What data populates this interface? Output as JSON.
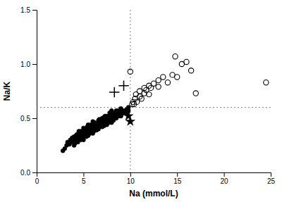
{
  "chart_data": {
    "type": "scatter",
    "xlabel": "Na (mmol/L)",
    "ylabel": "Na/K",
    "xlim": [
      0,
      25
    ],
    "ylim": [
      0.0,
      1.5
    ],
    "xticks": [
      0,
      5,
      10,
      15,
      20,
      25
    ],
    "yticks": [
      {
        "value": 0.0,
        "label": "0.0"
      },
      0.5,
      {
        "value": 1.0,
        "label": "1.0"
      },
      {
        "value": 1.5,
        "label": "1.5"
      }
    ],
    "grid": false,
    "vline_x": 10,
    "hline_y": 0.6,
    "background_color": "#ffffff",
    "series": [
      {
        "marker": "circle",
        "color": "#000000",
        "x": [
          2.8,
          3.0,
          3.2,
          3.3,
          3.5,
          3.6,
          3.7,
          3.8,
          4.0,
          4.0,
          4.0,
          4.1,
          4.1,
          4.2,
          4.2,
          4.3,
          4.3,
          4.4,
          4.4,
          4.5,
          4.5,
          4.5,
          4.6,
          4.6,
          4.7,
          4.7,
          4.7,
          4.8,
          4.8,
          4.9,
          5.0,
          5.0,
          5.0,
          5.0,
          5.1,
          5.1,
          5.2,
          5.2,
          5.3,
          5.3,
          5.3,
          5.4,
          5.4,
          5.4,
          5.5,
          5.5,
          5.5,
          5.5,
          5.6,
          5.6,
          5.7,
          5.7,
          5.7,
          5.8,
          5.8,
          5.8,
          5.9,
          5.9,
          6.0,
          6.0,
          6.0,
          6.0,
          6.1,
          6.1,
          6.2,
          6.2,
          6.2,
          6.3,
          6.3,
          6.4,
          6.4,
          6.5,
          6.5,
          6.6,
          6.6,
          6.6,
          6.7,
          6.7,
          6.7,
          6.8,
          6.8,
          6.9,
          6.9,
          7.0,
          7.0,
          7.0,
          7.1,
          7.1,
          7.2,
          7.2,
          7.2,
          7.3,
          7.3,
          7.3,
          7.4,
          7.5,
          7.5,
          7.5,
          7.6,
          7.6,
          7.7,
          7.7,
          7.8,
          7.8,
          7.8,
          7.9,
          7.9,
          8.0,
          8.0,
          8.0,
          8.0,
          8.1,
          8.1,
          8.2,
          8.2,
          8.3,
          8.3,
          8.4,
          8.4,
          8.5,
          8.5,
          8.5,
          8.6,
          8.6,
          8.7,
          8.7,
          8.8,
          8.8,
          8.9,
          8.9,
          9.0,
          9.0,
          9.0,
          9.1,
          9.2,
          9.3,
          9.4,
          9.5,
          9.6,
          9.7,
          9.8,
          9.8
        ],
        "values": [
          0.2,
          0.22,
          0.25,
          0.28,
          0.26,
          0.3,
          0.28,
          0.32,
          0.25,
          0.29,
          0.33,
          0.27,
          0.32,
          0.3,
          0.34,
          0.3,
          0.35,
          0.28,
          0.33,
          0.31,
          0.35,
          0.38,
          0.32,
          0.36,
          0.3,
          0.34,
          0.38,
          0.33,
          0.37,
          0.35,
          0.3,
          0.34,
          0.38,
          0.41,
          0.33,
          0.37,
          0.35,
          0.39,
          0.33,
          0.37,
          0.4,
          0.35,
          0.39,
          0.42,
          0.34,
          0.38,
          0.41,
          0.44,
          0.36,
          0.4,
          0.36,
          0.39,
          0.43,
          0.37,
          0.4,
          0.44,
          0.38,
          0.42,
          0.36,
          0.4,
          0.44,
          0.47,
          0.38,
          0.42,
          0.39,
          0.43,
          0.46,
          0.4,
          0.44,
          0.39,
          0.43,
          0.41,
          0.45,
          0.4,
          0.44,
          0.48,
          0.42,
          0.46,
          0.49,
          0.43,
          0.47,
          0.44,
          0.48,
          0.42,
          0.46,
          0.5,
          0.44,
          0.47,
          0.43,
          0.47,
          0.51,
          0.45,
          0.49,
          0.52,
          0.46,
          0.44,
          0.48,
          0.52,
          0.47,
          0.51,
          0.46,
          0.5,
          0.47,
          0.51,
          0.55,
          0.48,
          0.52,
          0.46,
          0.5,
          0.54,
          0.57,
          0.49,
          0.53,
          0.48,
          0.52,
          0.5,
          0.54,
          0.51,
          0.55,
          0.5,
          0.54,
          0.57,
          0.52,
          0.56,
          0.53,
          0.57,
          0.52,
          0.56,
          0.54,
          0.57,
          0.52,
          0.56,
          0.59,
          0.54,
          0.55,
          0.57,
          0.55,
          0.56,
          0.58,
          0.55,
          0.57,
          0.6
        ]
      },
      {
        "marker": "open-circle",
        "color": "#000000",
        "x": [
          10.0,
          10.2,
          10.3,
          10.4,
          10.5,
          10.6,
          10.7,
          11.0,
          11.0,
          11.2,
          11.5,
          11.5,
          11.7,
          12.0,
          12.0,
          12.2,
          12.5,
          13.0,
          13.0,
          13.5,
          14.0,
          14.5,
          14.8,
          15.0,
          15.5,
          16.0,
          16.5,
          17.0,
          24.5
        ],
        "values": [
          0.93,
          0.63,
          0.65,
          0.63,
          0.68,
          0.72,
          0.65,
          0.7,
          0.75,
          0.68,
          0.73,
          0.78,
          0.76,
          0.72,
          0.8,
          0.78,
          0.82,
          0.79,
          0.85,
          0.88,
          0.83,
          0.9,
          1.07,
          0.88,
          1.0,
          1.02,
          0.94,
          0.73,
          0.83
        ]
      },
      {
        "marker": "plus",
        "color": "#000000",
        "x": [
          8.3,
          9.3
        ],
        "values": [
          0.74,
          0.8
        ]
      },
      {
        "marker": "star",
        "color": "#000000",
        "x": [
          9.8,
          10.0
        ],
        "values": [
          0.52,
          0.47
        ]
      }
    ]
  }
}
